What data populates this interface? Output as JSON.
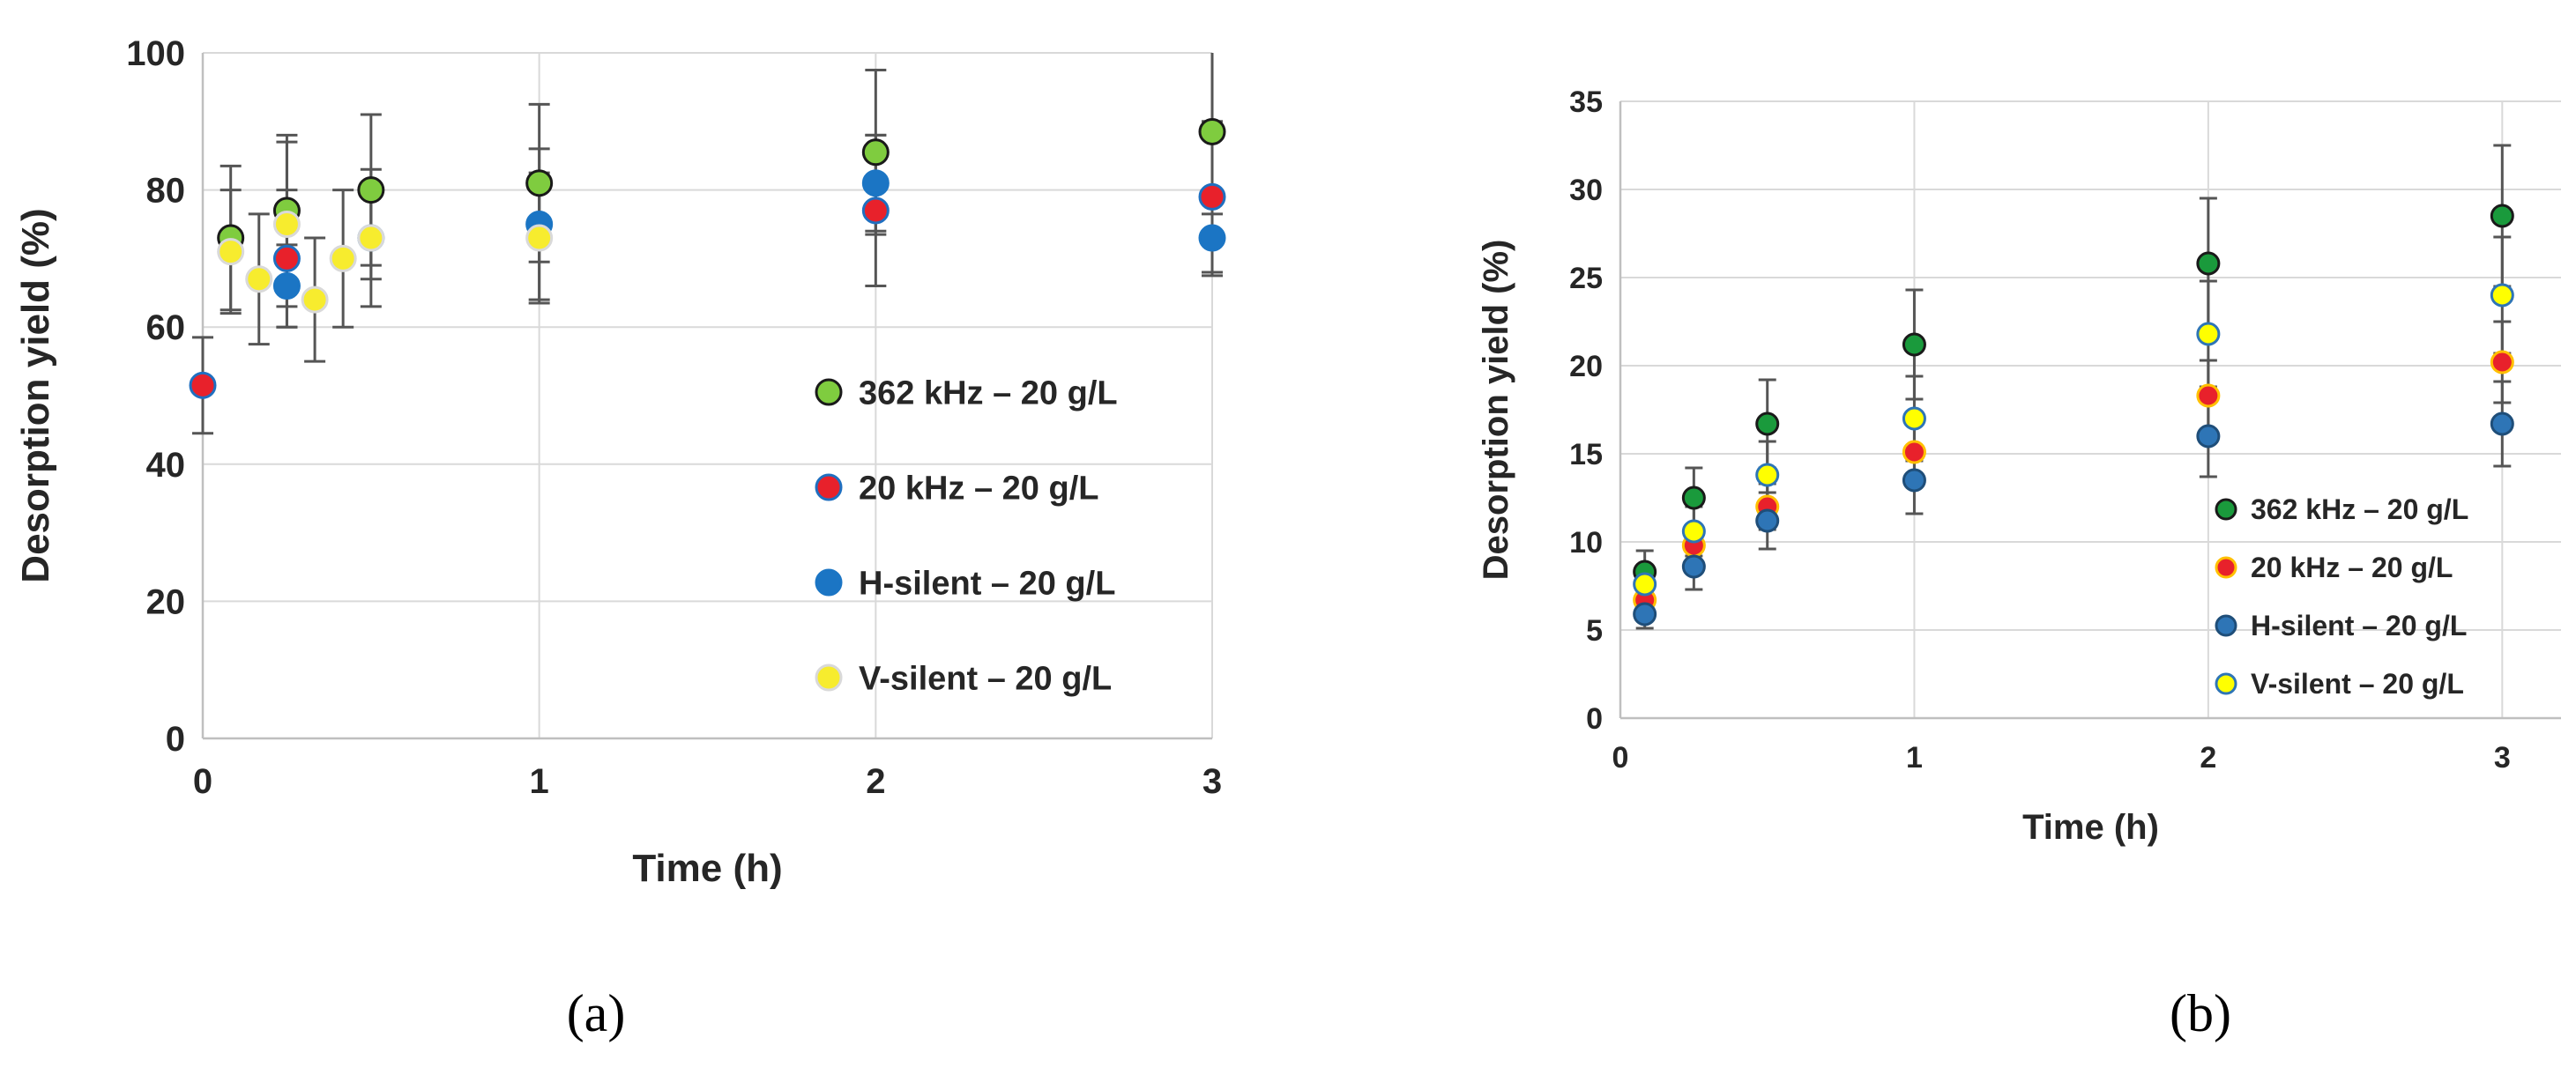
{
  "figure": {
    "caption_a": "(a)",
    "caption_b": "(b)"
  },
  "chart_data": [
    {
      "type": "scatter",
      "panel": "a",
      "xlabel": "Time (h)",
      "ylabel": "Desorption yield (%)",
      "xlim": [
        0,
        3
      ],
      "ylim": [
        0,
        100
      ],
      "xticks": [
        0,
        1,
        2,
        3
      ],
      "yticks": [
        0,
        20,
        40,
        60,
        80,
        100
      ],
      "grid": true,
      "legend_position": "right-middle",
      "series": [
        {
          "name": "362 kHz – 20 g/L",
          "color": "#7fcc3f",
          "stroke": "#1a1a1a",
          "x": [
            0.083,
            0.25,
            0.5,
            1,
            2,
            3
          ],
          "y": [
            73,
            77,
            80,
            81,
            85.5,
            88.5
          ],
          "err": [
            10.5,
            11,
            11,
            11.5,
            12,
            12
          ]
        },
        {
          "name": "20 kHz – 20 g/L",
          "color": "#e8212b",
          "stroke": "#1f6fc0",
          "x": [
            0,
            0.25,
            2,
            3
          ],
          "y": [
            51.5,
            70,
            77,
            79
          ],
          "err": [
            7,
            10,
            11,
            11
          ]
        },
        {
          "name": "H-silent – 20 g/L",
          "color": "#1b75c4",
          "stroke": "#1b75c4",
          "x": [
            0.25,
            0.5,
            1,
            2,
            3
          ],
          "y": [
            66,
            73,
            75,
            81,
            73
          ],
          "err": [
            6,
            6,
            11,
            7,
            5.5
          ]
        },
        {
          "name": "V-silent – 20 g/L",
          "color": "#f7ec2e",
          "stroke": "#d9d9d9",
          "x": [
            0.083,
            0.167,
            0.25,
            0.333,
            0.417,
            0.5,
            1
          ],
          "y": [
            71,
            67,
            75,
            64,
            70,
            73,
            73
          ],
          "err": [
            9,
            9.5,
            12,
            9,
            10,
            10,
            9.5
          ]
        }
      ]
    },
    {
      "type": "scatter",
      "panel": "b",
      "xlabel": "Time (h)",
      "ylabel": "Desorption yield (%)",
      "xlim": [
        0,
        3.2
      ],
      "ylim": [
        0,
        35
      ],
      "xticks": [
        0,
        1,
        2,
        3
      ],
      "yticks": [
        0,
        5,
        10,
        15,
        20,
        25,
        30,
        35
      ],
      "grid": true,
      "legend_position": "bottom-right",
      "series": [
        {
          "name": "362 kHz – 20 g/L",
          "color": "#1a9a3c",
          "stroke": "#1a1a1a",
          "x": [
            0.083,
            0.25,
            0.5,
            1,
            2,
            3
          ],
          "y": [
            8.3,
            12.5,
            16.7,
            21.2,
            25.8,
            28.5
          ],
          "err": [
            1.2,
            1.7,
            2.5,
            3.1,
            3.7,
            4
          ]
        },
        {
          "name": "20 kHz – 20 g/L",
          "color": "#e8212b",
          "stroke": "#ffc000",
          "x": [
            0.083,
            0.25,
            0.5,
            1,
            2,
            3
          ],
          "y": [
            6.7,
            9.8,
            12,
            15.1,
            18.3,
            20.2
          ],
          "err": [
            0.8,
            1,
            1.3,
            1.6,
            2,
            2.3
          ]
        },
        {
          "name": "H-silent – 20 g/L",
          "color": "#2e75b6",
          "stroke": "#1f4e79",
          "x": [
            0.083,
            0.25,
            0.5,
            1,
            2,
            3
          ],
          "y": [
            5.9,
            8.6,
            11.2,
            13.5,
            16,
            16.7
          ],
          "err": [
            0.8,
            1.3,
            1.6,
            1.9,
            2.3,
            2.4
          ]
        },
        {
          "name": "V-silent – 20 g/L",
          "color": "#ffff00",
          "stroke": "#2e75b6",
          "x": [
            0.083,
            0.25,
            0.5,
            1,
            2,
            3
          ],
          "y": [
            7.6,
            10.6,
            13.8,
            17,
            21.8,
            24
          ],
          "err": [
            1,
            1.4,
            1.9,
            2.4,
            3,
            3.3
          ]
        }
      ]
    }
  ]
}
